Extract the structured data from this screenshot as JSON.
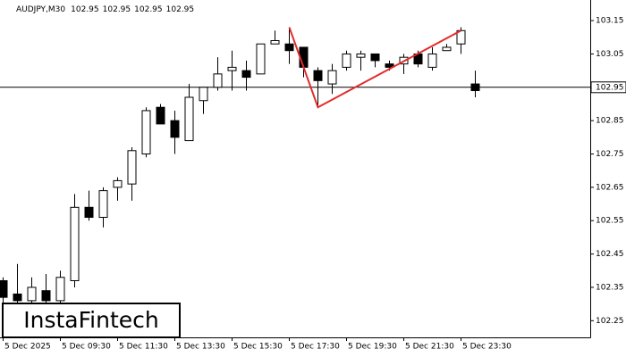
{
  "chart_data": {
    "type": "candlestick",
    "symbol": "AUDJPY,M30",
    "header_values": [
      102.95,
      102.95,
      102.95,
      102.95
    ],
    "watermark": "InstaFintech",
    "categories": [
      "5 Dec 2025",
      null,
      null,
      null,
      "5 Dec 09:30",
      null,
      null,
      null,
      "5 Dec 11:30",
      null,
      null,
      null,
      "5 Dec 13:30",
      null,
      null,
      null,
      "5 Dec 15:30",
      null,
      null,
      null,
      "5 Dec 17:30",
      null,
      null,
      null,
      "5 Dec 19:30",
      null,
      null,
      null,
      "5 Dec 21:30",
      null,
      null,
      null,
      "5 Dec 23:30",
      null
    ],
    "open": [
      102.37,
      102.33,
      102.31,
      102.34,
      102.31,
      102.37,
      102.59,
      102.56,
      102.65,
      102.66,
      102.75,
      102.89,
      102.85,
      102.79,
      102.91,
      102.95,
      103.0,
      103.0,
      102.99,
      103.08,
      103.08,
      103.07,
      103.0,
      102.96,
      103.01,
      103.04,
      103.05,
      103.02,
      103.02,
      103.05,
      103.01,
      103.06,
      103.08,
      102.96
    ],
    "high": [
      102.38,
      102.42,
      102.38,
      102.39,
      102.4,
      102.63,
      102.64,
      102.65,
      102.68,
      102.77,
      102.89,
      102.9,
      102.88,
      102.96,
      102.95,
      103.04,
      103.06,
      103.03,
      103.08,
      103.12,
      103.13,
      103.07,
      103.01,
      103.02,
      103.06,
      103.06,
      103.05,
      103.03,
      103.05,
      103.06,
      103.07,
      103.08,
      103.13,
      103.0
    ],
    "low": [
      102.29,
      102.29,
      102.29,
      102.29,
      102.29,
      102.35,
      102.55,
      102.53,
      102.61,
      102.61,
      102.74,
      102.84,
      102.75,
      102.79,
      102.87,
      102.94,
      102.94,
      102.94,
      102.99,
      103.08,
      103.02,
      102.98,
      102.89,
      102.93,
      103.0,
      103.0,
      103.01,
      103.0,
      102.99,
      103.01,
      103.0,
      103.06,
      103.05,
      102.92
    ],
    "close": [
      102.32,
      102.31,
      102.35,
      102.31,
      102.38,
      102.59,
      102.56,
      102.64,
      102.67,
      102.76,
      102.88,
      102.84,
      102.8,
      102.92,
      102.95,
      102.99,
      103.01,
      102.98,
      103.08,
      103.09,
      103.06,
      103.01,
      102.97,
      103.0,
      103.05,
      103.05,
      103.03,
      103.01,
      103.04,
      103.02,
      103.05,
      103.07,
      103.12,
      102.94
    ],
    "pattern": {
      "color": "#e32b2b",
      "x": [
        20,
        22,
        32
      ],
      "values": [
        103.13,
        102.89,
        103.12
      ]
    },
    "last_price": 102.95,
    "ylim": [
      102.2,
      103.185
    ],
    "yticks": [
      102.25,
      102.35,
      102.45,
      102.55,
      102.65,
      102.75,
      102.85,
      103.05,
      103.15
    ]
  }
}
